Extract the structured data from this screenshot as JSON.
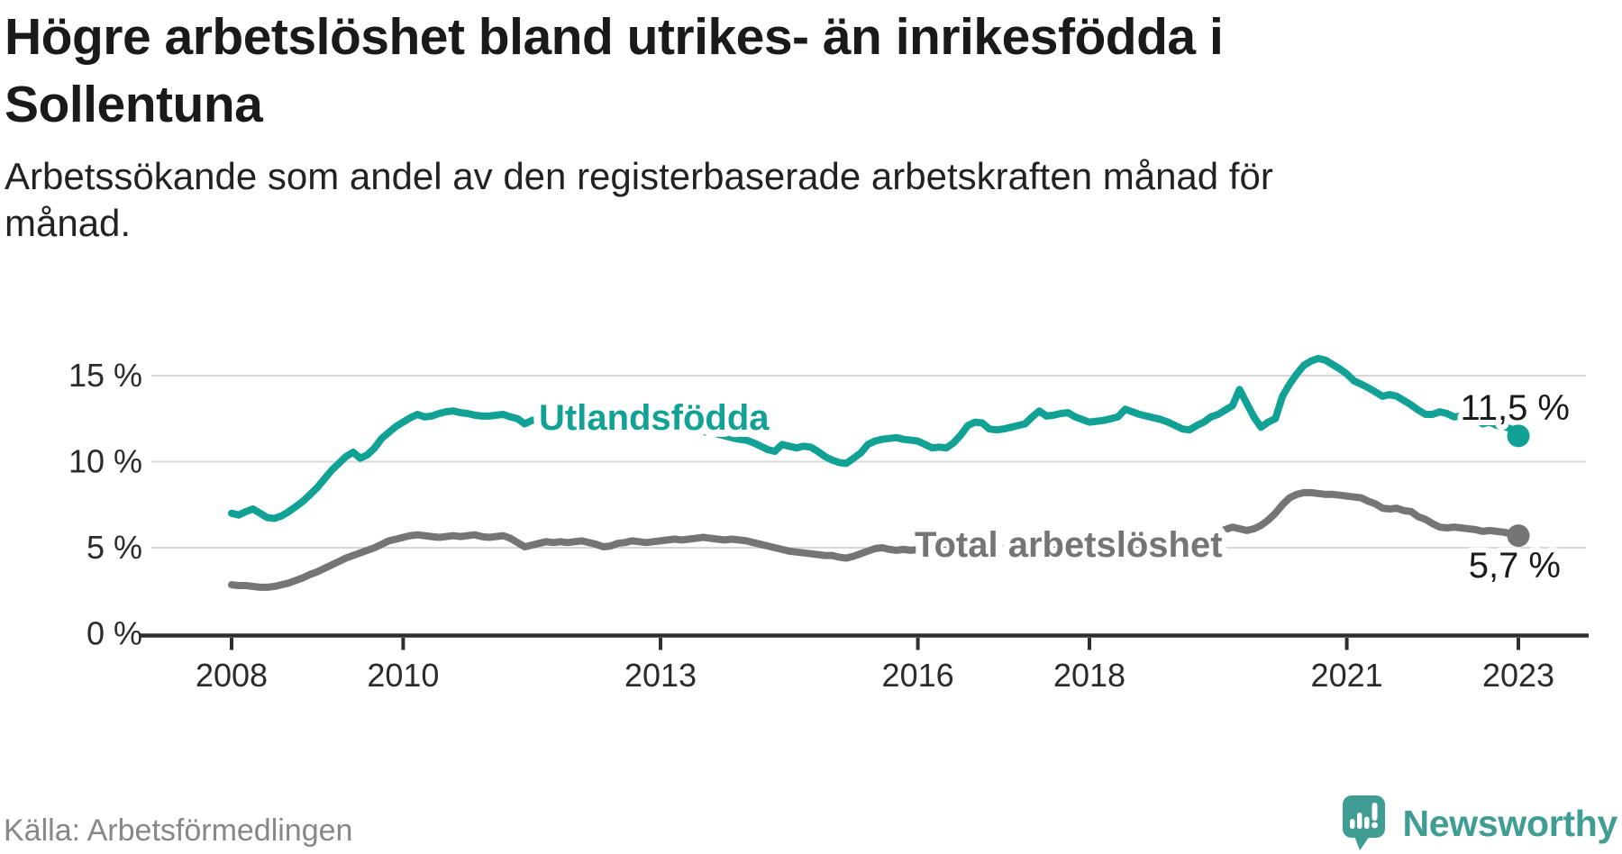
{
  "header": {
    "title": "Högre arbetslöshet bland utrikes- än inrikesfödda i\nSollentuna",
    "subtitle": "Arbetssökande som andel av den registerbaserade arbetskraften månad för\nmånad."
  },
  "footer": {
    "source": "Källa: Arbetsförmedlingen",
    "brand": "Newsworthy"
  },
  "colors": {
    "series_foreign_born": "#12a195",
    "series_total": "#757575",
    "axis": "#2e2e2e",
    "grid": "#d8d8d8",
    "logo_teal": "#3f9d93",
    "end_label_text": "#1a1a1a"
  },
  "chart_data": {
    "type": "line",
    "title": "Högre arbetslöshet bland utrikes- än inrikesfödda i Sollentuna",
    "subtitle": "Arbetssökande som andel av den registerbaserade arbetskraften månad för månad.",
    "x_unit": "month",
    "x_start": "2008-01",
    "x_end": "2023-01",
    "x_ticks": [
      2008,
      2010,
      2013,
      2016,
      2018,
      2021,
      2023
    ],
    "y_ticks": [
      0,
      5,
      10,
      15
    ],
    "y_tick_suffix": " %",
    "ylim": [
      0,
      16.6
    ],
    "grid": "horizontal-only",
    "legend": "inline-labels",
    "series": [
      {
        "name": "Utlandsfödda",
        "color": "#12a195",
        "end_label": "11,5 %",
        "end_value": 11.5,
        "values": [
          7.0,
          6.9,
          7.1,
          7.25,
          7.0,
          6.75,
          6.7,
          6.85,
          7.1,
          7.4,
          7.7,
          8.1,
          8.5,
          9.0,
          9.5,
          9.9,
          10.3,
          10.55,
          10.2,
          10.4,
          10.8,
          11.35,
          11.7,
          12.05,
          12.3,
          12.55,
          12.75,
          12.6,
          12.65,
          12.8,
          12.9,
          12.95,
          12.85,
          12.8,
          12.7,
          12.65,
          12.65,
          12.7,
          12.75,
          12.6,
          12.5,
          12.2,
          12.4,
          12.45,
          12.4,
          12.45,
          12.4,
          12.35,
          12.35,
          12.3,
          12.3,
          12.35,
          12.4,
          12.35,
          12.3,
          12.25,
          12.2,
          12.15,
          12.1,
          12.05,
          12.0,
          11.95,
          11.9,
          11.85,
          11.85,
          11.8,
          11.75,
          11.7,
          11.6,
          11.5,
          11.4,
          11.3,
          11.25,
          11.1,
          10.9,
          10.7,
          10.6,
          11.0,
          10.9,
          10.8,
          10.9,
          10.85,
          10.6,
          10.3,
          10.1,
          9.95,
          9.9,
          10.2,
          10.5,
          11.0,
          11.2,
          11.3,
          11.35,
          11.4,
          11.3,
          11.25,
          11.2,
          11.0,
          10.8,
          10.85,
          10.8,
          11.1,
          11.55,
          12.1,
          12.3,
          12.25,
          11.9,
          11.85,
          11.9,
          12.0,
          12.1,
          12.2,
          12.6,
          12.95,
          12.65,
          12.7,
          12.8,
          12.85,
          12.6,
          12.45,
          12.3,
          12.35,
          12.4,
          12.5,
          12.6,
          13.05,
          12.9,
          12.75,
          12.65,
          12.55,
          12.45,
          12.3,
          12.1,
          11.9,
          11.85,
          12.1,
          12.3,
          12.6,
          12.75,
          13.0,
          13.25,
          14.2,
          13.4,
          12.6,
          12.0,
          12.3,
          12.5,
          13.8,
          14.5,
          15.1,
          15.6,
          15.85,
          16.0,
          15.9,
          15.65,
          15.4,
          15.1,
          14.7,
          14.5,
          14.3,
          14.05,
          13.8,
          13.9,
          13.8,
          13.55,
          13.3,
          13.0,
          12.75,
          12.75,
          12.9,
          12.8,
          12.6,
          12.65,
          12.5,
          12.5,
          12.2,
          12.3,
          12.1,
          12.05,
          11.9,
          11.5
        ]
      },
      {
        "name": "Total arbetslöshet",
        "color": "#757575",
        "end_label": "5,7 %",
        "end_value": 5.7,
        "values": [
          2.85,
          2.8,
          2.8,
          2.75,
          2.7,
          2.7,
          2.75,
          2.85,
          2.95,
          3.1,
          3.25,
          3.45,
          3.6,
          3.8,
          4.0,
          4.2,
          4.4,
          4.55,
          4.7,
          4.85,
          5.0,
          5.2,
          5.4,
          5.5,
          5.6,
          5.7,
          5.75,
          5.7,
          5.65,
          5.6,
          5.65,
          5.7,
          5.65,
          5.7,
          5.75,
          5.65,
          5.6,
          5.65,
          5.7,
          5.55,
          5.3,
          5.05,
          5.15,
          5.25,
          5.35,
          5.3,
          5.35,
          5.3,
          5.35,
          5.4,
          5.3,
          5.2,
          5.05,
          5.1,
          5.25,
          5.3,
          5.4,
          5.35,
          5.3,
          5.35,
          5.4,
          5.45,
          5.5,
          5.45,
          5.5,
          5.55,
          5.6,
          5.55,
          5.5,
          5.45,
          5.5,
          5.45,
          5.4,
          5.3,
          5.2,
          5.1,
          5.0,
          4.9,
          4.8,
          4.75,
          4.7,
          4.65,
          4.6,
          4.55,
          4.55,
          4.45,
          4.4,
          4.5,
          4.65,
          4.8,
          4.95,
          5.0,
          4.9,
          4.85,
          4.9,
          4.85,
          4.9,
          4.85,
          4.9,
          4.95,
          4.9,
          4.95,
          5.0,
          4.95,
          5.0,
          5.05,
          5.0,
          5.0,
          5.0,
          5.05,
          5.1,
          5.05,
          5.0,
          5.05,
          5.1,
          5.05,
          5.0,
          4.95,
          5.0,
          5.0,
          4.95,
          4.9,
          4.9,
          4.95,
          4.9,
          4.95,
          5.0,
          5.05,
          5.1,
          5.15,
          5.2,
          5.25,
          5.3,
          5.35,
          5.4,
          5.5,
          5.6,
          5.75,
          5.9,
          6.05,
          6.2,
          6.1,
          6.0,
          6.1,
          6.3,
          6.6,
          7.0,
          7.5,
          7.9,
          8.1,
          8.2,
          8.2,
          8.15,
          8.1,
          8.1,
          8.05,
          8.0,
          7.95,
          7.9,
          7.7,
          7.55,
          7.3,
          7.25,
          7.3,
          7.15,
          7.1,
          6.8,
          6.65,
          6.4,
          6.2,
          6.15,
          6.2,
          6.15,
          6.1,
          6.05,
          5.95,
          6.0,
          5.95,
          5.9,
          5.8,
          5.7
        ]
      }
    ]
  }
}
